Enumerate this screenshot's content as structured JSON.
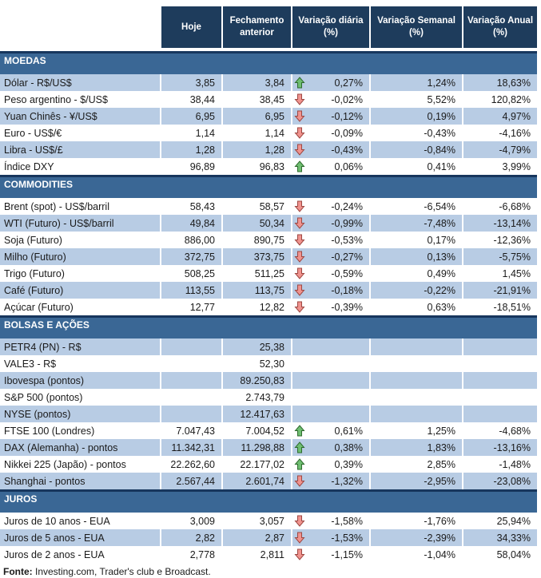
{
  "columns": [
    "Hoje",
    "Fechamento anterior",
    "Variação diária (%)",
    "Variação Semanal (%)",
    "Variação Anual (%)"
  ],
  "colors": {
    "header_bg": "#1E3C5C",
    "section_bar_bg": "#3A6795",
    "section_bar_border": "#17365D",
    "row_stripe": "#B8CCE4",
    "up_arrow_fill": "#6FBE71",
    "up_arrow_border": "#2E6B2E",
    "down_arrow_fill": "#F0938E",
    "down_arrow_border": "#9E4742"
  },
  "sections": [
    {
      "title": "MOEDAS",
      "rows": [
        {
          "label": "Dólar - R$/US$",
          "hoje": "3,85",
          "fechamento": "3,84",
          "trend": "up",
          "diaria": "0,27%",
          "semanal": "1,24%",
          "anual": "18,63%"
        },
        {
          "label": "Peso argentino - $/US$",
          "hoje": "38,44",
          "fechamento": "38,45",
          "trend": "down",
          "diaria": "-0,02%",
          "semanal": "5,52%",
          "anual": "120,82%"
        },
        {
          "label": "Yuan Chinês - ¥/US$",
          "hoje": "6,95",
          "fechamento": "6,95",
          "trend": "down",
          "diaria": "-0,12%",
          "semanal": "0,19%",
          "anual": "4,97%"
        },
        {
          "label": "Euro - US$/€",
          "hoje": "1,14",
          "fechamento": "1,14",
          "trend": "down",
          "diaria": "-0,09%",
          "semanal": "-0,43%",
          "anual": "-4,16%"
        },
        {
          "label": "Libra - US$/£",
          "hoje": "1,28",
          "fechamento": "1,28",
          "trend": "down",
          "diaria": "-0,43%",
          "semanal": "-0,84%",
          "anual": "-4,79%"
        },
        {
          "label": "Índice DXY",
          "hoje": "96,89",
          "fechamento": "96,83",
          "trend": "up",
          "diaria": "0,06%",
          "semanal": "0,41%",
          "anual": "3,99%"
        }
      ]
    },
    {
      "title": "COMMODITIES",
      "rows": [
        {
          "label": "Brent (spot) - US$/barril",
          "hoje": "58,43",
          "fechamento": "58,57",
          "trend": "down",
          "diaria": "-0,24%",
          "semanal": "-6,54%",
          "anual": "-6,68%"
        },
        {
          "label": "WTI (Futuro) - US$/barril",
          "hoje": "49,84",
          "fechamento": "50,34",
          "trend": "down",
          "diaria": "-0,99%",
          "semanal": "-7,48%",
          "anual": "-13,14%"
        },
        {
          "label": "Soja (Futuro)",
          "hoje": "886,00",
          "fechamento": "890,75",
          "trend": "down",
          "diaria": "-0,53%",
          "semanal": "0,17%",
          "anual": "-12,36%"
        },
        {
          "label": "Milho (Futuro)",
          "hoje": "372,75",
          "fechamento": "373,75",
          "trend": "down",
          "diaria": "-0,27%",
          "semanal": "0,13%",
          "anual": "-5,75%"
        },
        {
          "label": "Trigo (Futuro)",
          "hoje": "508,25",
          "fechamento": "511,25",
          "trend": "down",
          "diaria": "-0,59%",
          "semanal": "0,49%",
          "anual": "1,45%"
        },
        {
          "label": "Café (Futuro)",
          "hoje": "113,55",
          "fechamento": "113,75",
          "trend": "down",
          "diaria": "-0,18%",
          "semanal": "-0,22%",
          "anual": "-21,91%"
        },
        {
          "label": "Açúcar (Futuro)",
          "hoje": "12,77",
          "fechamento": "12,82",
          "trend": "down",
          "diaria": "-0,39%",
          "semanal": "0,63%",
          "anual": "-18,51%"
        }
      ]
    },
    {
      "title": "BOLSAS E AÇÕES",
      "rows": [
        {
          "label": "PETR4 (PN) - R$",
          "hoje": "",
          "fechamento": "25,38",
          "trend": null,
          "diaria": "",
          "semanal": "",
          "anual": ""
        },
        {
          "label": "VALE3 - R$",
          "hoje": "",
          "fechamento": "52,30",
          "trend": null,
          "diaria": "",
          "semanal": "",
          "anual": ""
        },
        {
          "label": "Ibovespa (pontos)",
          "hoje": "",
          "fechamento": "89.250,83",
          "trend": null,
          "diaria": "",
          "semanal": "",
          "anual": ""
        },
        {
          "label": "S&P 500 (pontos)",
          "hoje": "",
          "fechamento": "2.743,79",
          "trend": null,
          "diaria": "",
          "semanal": "",
          "anual": ""
        },
        {
          "label": "NYSE (pontos)",
          "hoje": "",
          "fechamento": "12.417,63",
          "trend": null,
          "diaria": "",
          "semanal": "",
          "anual": ""
        },
        {
          "label": "FTSE 100 (Londres)",
          "hoje": "7.047,43",
          "fechamento": "7.004,52",
          "trend": "up",
          "diaria": "0,61%",
          "semanal": "1,25%",
          "anual": "-4,68%"
        },
        {
          "label": "DAX (Alemanha) - pontos",
          "hoje": "11.342,31",
          "fechamento": "11.298,88",
          "trend": "up",
          "diaria": "0,38%",
          "semanal": "1,83%",
          "anual": "-13,16%"
        },
        {
          "label": "Nikkei 225 (Japão) - pontos",
          "hoje": "22.262,60",
          "fechamento": "22.177,02",
          "trend": "up",
          "diaria": "0,39%",
          "semanal": "2,85%",
          "anual": "-1,48%"
        },
        {
          "label": "Shanghai - pontos",
          "hoje": "2.567,44",
          "fechamento": "2.601,74",
          "trend": "down",
          "diaria": "-1,32%",
          "semanal": "-2,95%",
          "anual": "-23,08%"
        }
      ]
    },
    {
      "title": "JUROS",
      "rows": [
        {
          "label": "Juros de 10 anos - EUA",
          "hoje": "3,009",
          "fechamento": "3,057",
          "trend": "down",
          "diaria": "-1,58%",
          "semanal": "-1,76%",
          "anual": "25,94%"
        },
        {
          "label": "Juros de 5 anos - EUA",
          "hoje": "2,82",
          "fechamento": "2,87",
          "trend": "down",
          "diaria": "-1,53%",
          "semanal": "-2,39%",
          "anual": "34,33%"
        },
        {
          "label": "Juros de 2 anos - EUA",
          "hoje": "2,778",
          "fechamento": "2,811",
          "trend": "down",
          "diaria": "-1,15%",
          "semanal": "-1,04%",
          "anual": "58,04%"
        }
      ]
    }
  ],
  "footer": {
    "label": "Fonte:",
    "text": " Investing.com, Trader's club e Broadcast."
  }
}
